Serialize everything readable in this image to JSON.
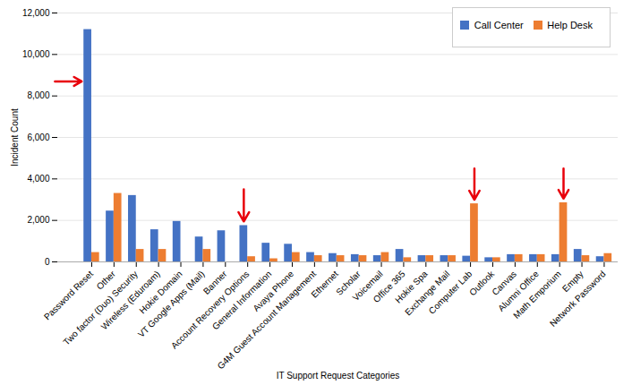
{
  "chart_data": {
    "type": "bar",
    "xlabel": "IT Support Request Categories",
    "ylabel": "Incident Count",
    "categories": [
      "Password Reset",
      "Other",
      "Two factor (Duo) Security",
      "Wireless (Eduroam)",
      "Hokie Domain",
      "VT Google Apps (Mail)",
      "Banner",
      "Account Recovery Options",
      "General Information",
      "Avaya Phone",
      "G4M Guest Account Management",
      "Ethernet",
      "Scholar",
      "Voicemail",
      "Office 365",
      "Hokie Spa",
      "Exchange Mail",
      "Computer Lab",
      "Outlook",
      "Canvas",
      "Alumni Office",
      "Math Emporium",
      "Empty",
      "Network Password"
    ],
    "series": [
      {
        "name": "Call Center",
        "color": "#4472C4",
        "values": [
          11200,
          2450,
          3200,
          1550,
          1950,
          1200,
          1500,
          1750,
          900,
          850,
          450,
          400,
          350,
          300,
          600,
          300,
          300,
          275,
          200,
          350,
          350,
          350,
          600,
          250
        ]
      },
      {
        "name": "Help Desk",
        "color": "#ED7D31",
        "values": [
          450,
          3300,
          600,
          600,
          0,
          600,
          0,
          250,
          150,
          450,
          300,
          300,
          300,
          450,
          200,
          300,
          300,
          2800,
          200,
          350,
          350,
          2850,
          300,
          400
        ]
      }
    ],
    "ylim": [
      0,
      12000
    ],
    "yticks": [
      0,
      {
        "value": 2000,
        "label": "2,000"
      },
      {
        "value": 4000,
        "label": "4,000"
      },
      {
        "value": 6000,
        "label": "6,000"
      },
      {
        "value": 8000,
        "label": "8,000"
      },
      {
        "value": 10000,
        "label": "10,000"
      },
      {
        "value": 12000,
        "label": "12,000"
      }
    ],
    "grid": true,
    "legend": "upper right",
    "annotations": [
      {
        "type": "arrow",
        "direction": "right",
        "category": "Password Reset",
        "series": "Call Center",
        "y": 8700,
        "color": "#E8000B"
      },
      {
        "type": "arrow",
        "direction": "down",
        "category": "Account Recovery Options",
        "series": "Call Center",
        "y_from": 3500,
        "y_to": 1950,
        "color": "#E8000B"
      },
      {
        "type": "arrow",
        "direction": "down",
        "category": "Computer Lab",
        "series": "Help Desk",
        "y_from": 4500,
        "y_to": 3000,
        "color": "#E8000B"
      },
      {
        "type": "arrow",
        "direction": "down",
        "category": "Math Emporium",
        "series": "Help Desk",
        "y_from": 4500,
        "y_to": 3050,
        "color": "#E8000B"
      }
    ]
  }
}
